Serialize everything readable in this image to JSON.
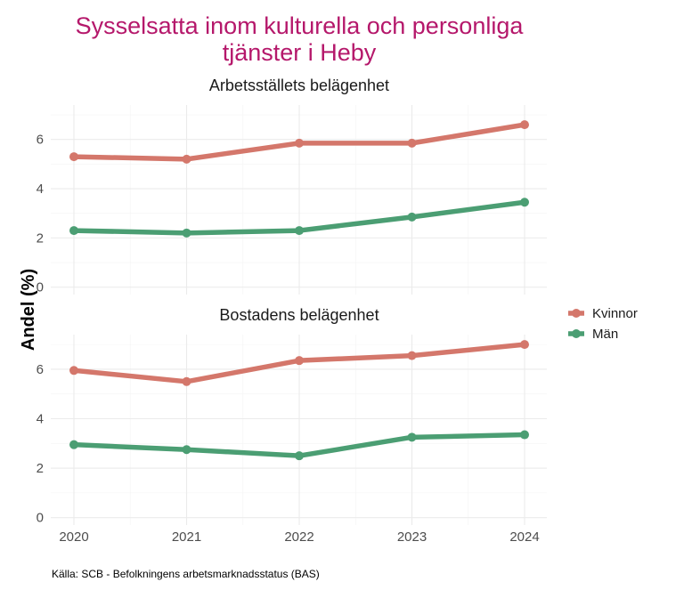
{
  "chart_data": {
    "type": "line",
    "title_lines": [
      "Sysselsatta inom kulturella och personliga",
      "tjänster i Heby"
    ],
    "ylabel": "Andel (%)",
    "xlabel": "",
    "caption": "Källa: SCB - Befolkningens arbetsmarknadsstatus (BAS)",
    "x": [
      2020,
      2021,
      2022,
      2023,
      2024
    ],
    "x_tick_labels": [
      "2020",
      "2021",
      "2022",
      "2023",
      "2024"
    ],
    "ylim": [
      -0.3,
      7.4
    ],
    "y_ticks": [
      0,
      2,
      4,
      6
    ],
    "y_tick_labels": [
      "0",
      "2",
      "4",
      "6"
    ],
    "grid": true,
    "legend_position": "right",
    "legend": [
      {
        "name": "Kvinnor",
        "color": "#d4776b"
      },
      {
        "name": "Män",
        "color": "#4b9e73"
      }
    ],
    "panels": [
      {
        "title": "Arbetsställets belägenhet",
        "series": [
          {
            "name": "Kvinnor",
            "values": [
              5.3,
              5.2,
              5.85,
              5.85,
              6.6
            ]
          },
          {
            "name": "Män",
            "values": [
              2.3,
              2.2,
              2.3,
              2.85,
              3.45
            ]
          }
        ]
      },
      {
        "title": "Bostadens belägenhet",
        "series": [
          {
            "name": "Kvinnor",
            "values": [
              5.95,
              5.5,
              6.35,
              6.55,
              7.0
            ]
          },
          {
            "name": "Män",
            "values": [
              2.95,
              2.75,
              2.5,
              3.25,
              3.35
            ]
          }
        ]
      }
    ]
  }
}
